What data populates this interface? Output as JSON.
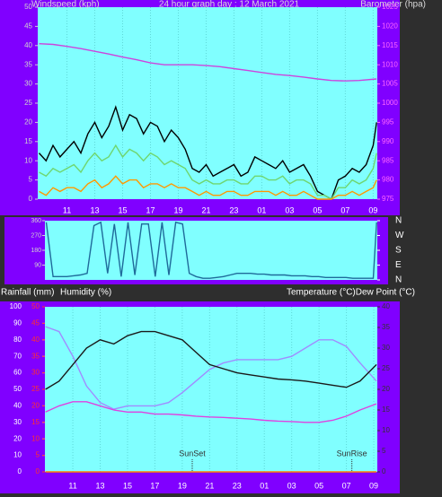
{
  "chart_data": [
    {
      "type": "line",
      "title": "24 hour graph day : 12 March 2021",
      "ylabel": "Windspeed (kph)",
      "y2label": "Barometer (hpa)",
      "xlim": [
        8.9,
        33.3
      ],
      "xticks": [
        11,
        13,
        15,
        17,
        19,
        21,
        23,
        {
          "value": 25,
          "label": "01"
        },
        {
          "value": 27,
          "label": "03"
        },
        {
          "value": 29,
          "label": "05"
        },
        {
          "value": 31,
          "label": "07"
        },
        {
          "value": 33,
          "label": "09"
        }
      ],
      "ylim": [
        0,
        50
      ],
      "yticks": [
        0,
        5,
        10,
        15,
        20,
        25,
        30,
        35,
        40,
        45,
        50
      ],
      "y2lim": [
        975,
        1025
      ],
      "y2ticks": [
        975,
        980,
        985,
        990,
        995,
        1000,
        1005,
        1010,
        1015,
        1020,
        1025
      ],
      "grid": true,
      "series": [
        {
          "color": "#000000",
          "x": [
            9,
            9.5,
            10,
            10.5,
            11,
            11.5,
            12,
            12.5,
            13,
            13.5,
            14,
            14.5,
            15,
            15.5,
            16,
            16.5,
            17,
            17.5,
            18,
            18.5,
            19,
            19.5,
            20,
            20.5,
            21,
            21.5,
            22,
            22.5,
            23,
            23.5,
            24,
            24.5,
            25,
            25.5,
            26,
            26.5,
            27,
            27.5,
            28,
            28.5,
            29,
            29.5,
            30,
            30.5,
            31,
            31.5,
            32,
            32.5,
            33,
            33.25
          ],
          "values": [
            12,
            10,
            14,
            11,
            13,
            15,
            12,
            17,
            20,
            16,
            19,
            24,
            18,
            22,
            21,
            17,
            20,
            19,
            15,
            18,
            16,
            13,
            8,
            7,
            9,
            6,
            7,
            8,
            9,
            6,
            7,
            11,
            10,
            9,
            8,
            10,
            7,
            8,
            9,
            6,
            2,
            1,
            0,
            5,
            6,
            8,
            7,
            9,
            14,
            20
          ]
        },
        {
          "color": "#6fd66f",
          "x": [
            9,
            9.5,
            10,
            10.5,
            11,
            11.5,
            12,
            12.5,
            13,
            13.5,
            14,
            14.5,
            15,
            15.5,
            16,
            16.5,
            17,
            17.5,
            18,
            18.5,
            19,
            19.5,
            20,
            20.5,
            21,
            21.5,
            22,
            22.5,
            23,
            23.5,
            24,
            24.5,
            25,
            25.5,
            26,
            26.5,
            27,
            27.5,
            28,
            28.5,
            29,
            29.5,
            30,
            30.5,
            31,
            31.5,
            32,
            32.5,
            33,
            33.25
          ],
          "values": [
            7,
            6,
            8,
            7,
            8,
            9,
            7,
            10,
            12,
            10,
            11,
            14,
            11,
            13,
            12,
            10,
            12,
            11,
            9,
            10,
            9,
            8,
            5,
            4,
            5,
            4,
            4,
            5,
            5,
            4,
            4,
            6,
            6,
            5,
            5,
            6,
            4,
            5,
            5,
            4,
            1,
            1,
            0,
            3,
            3,
            5,
            4,
            5,
            8,
            12
          ]
        },
        {
          "color": "#ff9900",
          "x": [
            9,
            9.5,
            10,
            10.5,
            11,
            11.5,
            12,
            12.5,
            13,
            13.5,
            14,
            14.5,
            15,
            15.5,
            16,
            16.5,
            17,
            17.5,
            18,
            18.5,
            19,
            19.5,
            20,
            20.5,
            21,
            21.5,
            22,
            22.5,
            23,
            23.5,
            24,
            24.5,
            25,
            25.5,
            26,
            26.5,
            27,
            27.5,
            28,
            28.5,
            29,
            29.5,
            30,
            30.5,
            31,
            31.5,
            32,
            32.5,
            33,
            33.25
          ],
          "values": [
            2,
            1,
            3,
            2,
            3,
            3,
            2,
            4,
            5,
            3,
            4,
            6,
            4,
            5,
            5,
            3,
            4,
            4,
            3,
            4,
            3,
            3,
            2,
            1,
            2,
            1,
            1,
            2,
            2,
            1,
            1,
            2,
            2,
            2,
            1,
            2,
            1,
            1,
            2,
            1,
            0,
            0,
            0,
            1,
            1,
            2,
            1,
            2,
            3,
            5
          ]
        },
        {
          "color": "#cc44dd",
          "axis": "y2",
          "x": [
            9,
            10,
            11,
            12,
            13,
            14,
            15,
            16,
            17,
            18,
            19,
            20,
            21,
            22,
            23,
            24,
            25,
            26,
            27,
            28,
            29,
            30,
            31,
            32,
            33.25
          ],
          "values": [
            1015.5,
            1015.3,
            1014.8,
            1014.2,
            1013.5,
            1012.8,
            1012,
            1011.3,
            1010.5,
            1010,
            1010,
            1010,
            1009.8,
            1009.5,
            1009,
            1008.5,
            1008,
            1007.5,
            1007.2,
            1006.8,
            1006.3,
            1005.9,
            1005.8,
            1005.9,
            1006.3
          ]
        }
      ]
    },
    {
      "type": "line",
      "xlim": [
        8.9,
        33.3
      ],
      "ylim": [
        0,
        360
      ],
      "yticks": [
        90,
        180,
        270,
        360
      ],
      "y2lim": [
        0,
        360
      ],
      "y2ticks": [
        {
          "value": 360,
          "label": "N"
        },
        {
          "value": 270,
          "label": "W"
        },
        {
          "value": 180,
          "label": "S"
        },
        {
          "value": 90,
          "label": "E"
        },
        {
          "value": 0,
          "label": "N"
        }
      ],
      "series": [
        {
          "color": "#1f6a9a",
          "x": [
            9,
            9.5,
            10,
            10.5,
            11,
            11.5,
            12,
            12.5,
            13,
            13.5,
            14,
            14.5,
            15,
            15.5,
            16,
            16.5,
            17,
            17.5,
            18,
            18.5,
            19,
            19.5,
            20,
            20.5,
            21,
            21.5,
            22,
            22.5,
            23,
            23.5,
            24,
            24.5,
            25,
            25.5,
            26,
            26.5,
            27,
            27.5,
            28,
            28.5,
            29,
            29.5,
            30,
            30.5,
            31,
            31.5,
            32,
            32.5,
            33,
            33.25
          ],
          "values": [
            350,
            20,
            20,
            20,
            25,
            30,
            40,
            330,
            350,
            40,
            340,
            20,
            350,
            30,
            340,
            340,
            20,
            350,
            30,
            350,
            340,
            40,
            20,
            10,
            10,
            15,
            20,
            30,
            40,
            40,
            40,
            35,
            35,
            30,
            30,
            30,
            25,
            25,
            25,
            20,
            20,
            15,
            15,
            15,
            15,
            10,
            10,
            10,
            10,
            350
          ]
        }
      ]
    },
    {
      "type": "line",
      "ylabel": "Humidity (%)",
      "y3label": "Rainfall (mm)",
      "y2label": "Temperature (°C)Dew Point (°C)",
      "xlim": [
        8.96,
        33.26
      ],
      "xticks": [
        11,
        13,
        15,
        17,
        19,
        21,
        23,
        {
          "value": 25,
          "label": "01"
        },
        {
          "value": 27,
          "label": "03"
        },
        {
          "value": 29,
          "label": "05"
        },
        {
          "value": 31,
          "label": "07"
        },
        {
          "value": 33,
          "label": "09"
        }
      ],
      "ylim": [
        0,
        100
      ],
      "yticks": [
        0,
        10,
        20,
        30,
        40,
        50,
        60,
        70,
        80,
        90,
        100
      ],
      "y3lim": [
        0,
        50
      ],
      "y3ticks": [
        0,
        5,
        10,
        15,
        20,
        25,
        30,
        35,
        40,
        45,
        50
      ],
      "y2lim": [
        0,
        40
      ],
      "y2ticks": [
        0,
        5,
        10,
        15,
        20,
        25,
        30,
        35,
        40
      ],
      "grid": true,
      "annotations": [
        {
          "label": "SunSet",
          "x": 19.73
        },
        {
          "label": "SunRise",
          "x": 31.4
        }
      ],
      "series": [
        {
          "color": "#ff8000",
          "axis": "y3",
          "x": [
            9,
            10,
            11,
            12,
            13,
            14,
            15,
            16,
            17,
            18,
            19,
            20,
            21,
            22,
            23,
            24,
            25,
            26,
            27,
            28,
            29,
            30,
            31,
            32,
            33.2
          ],
          "values": [
            0,
            0,
            0,
            0,
            0,
            0,
            0,
            0,
            0,
            0,
            0,
            0,
            0,
            0,
            0,
            0,
            0,
            0,
            0,
            0,
            0,
            0,
            0,
            0,
            0
          ]
        },
        {
          "color": "#a08cff",
          "x": [
            9,
            10,
            11,
            12,
            13,
            14,
            15,
            16,
            17,
            18,
            19,
            20,
            21,
            22,
            23,
            24,
            25,
            26,
            27,
            28,
            29,
            30,
            31,
            32,
            33.2
          ],
          "values": [
            88,
            85,
            70,
            52,
            42,
            38,
            40,
            40,
            40,
            42,
            48,
            55,
            62,
            66,
            68,
            68,
            68,
            68,
            70,
            75,
            80,
            80,
            76,
            66,
            55
          ]
        },
        {
          "color": "#e040e0",
          "axis": "y2",
          "x": [
            9,
            10,
            11,
            12,
            13,
            14,
            15,
            16,
            17,
            18,
            19,
            20,
            21,
            22,
            23,
            24,
            25,
            26,
            27,
            28,
            29,
            30,
            31,
            32,
            33.2
          ],
          "values": [
            14.5,
            16,
            17,
            17,
            16,
            15,
            14.5,
            14.5,
            14,
            14,
            13.8,
            13.5,
            13.3,
            13.2,
            13,
            12.8,
            12.5,
            12.3,
            12.2,
            12,
            12,
            12.5,
            13.5,
            15,
            16.5
          ]
        },
        {
          "color": "#1a1a1a",
          "axis": "y2",
          "x": [
            9,
            10,
            11,
            12,
            13,
            14,
            15,
            16,
            17,
            18,
            19,
            20,
            21,
            22,
            23,
            24,
            25,
            26,
            27,
            28,
            29,
            30,
            31,
            32,
            33.2
          ],
          "values": [
            20,
            22,
            26,
            30,
            32,
            31,
            33,
            34,
            34,
            33,
            32,
            29,
            26,
            25,
            24,
            23.5,
            23,
            22.5,
            22.3,
            22,
            21.5,
            21,
            20.5,
            22,
            26
          ]
        }
      ]
    }
  ]
}
